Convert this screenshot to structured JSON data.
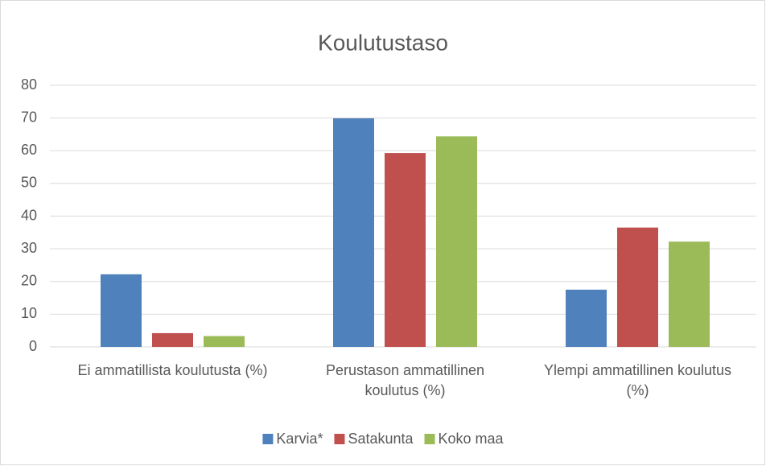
{
  "chart_data": {
    "type": "bar",
    "title": "Koulutustaso",
    "categories": [
      "Ei ammatillista koulutusta (%)",
      "Perustason ammatillinen koulutus (%)",
      "Ylempi ammatillinen koulutus (%)"
    ],
    "series": [
      {
        "name": "Karvia*",
        "color": "#4f81bd",
        "values": [
          22.2,
          69.9,
          17.5
        ]
      },
      {
        "name": "Satakunta",
        "color": "#c0504d",
        "values": [
          4.2,
          59.3,
          36.5
        ]
      },
      {
        "name": "Koko maa",
        "color": "#9bbb59",
        "values": [
          3.3,
          64.4,
          32.2
        ]
      }
    ],
    "ylim": [
      0,
      80
    ],
    "yticks": [
      0,
      10,
      20,
      30,
      40,
      50,
      60,
      70,
      80
    ],
    "grid": true,
    "legend": "bottom"
  }
}
